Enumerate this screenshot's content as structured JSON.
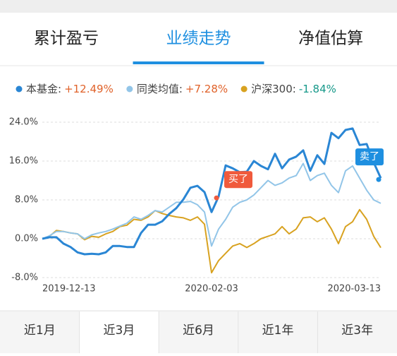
{
  "tabs": [
    "累计盈亏",
    "业绩走势",
    "净值估算"
  ],
  "active_tab": 1,
  "chart_data": {
    "type": "line",
    "categories": [
      "2019-12-13",
      null,
      null,
      null,
      null,
      null,
      null,
      null,
      null,
      null,
      null,
      null,
      null,
      null,
      null,
      null,
      null,
      null,
      null,
      null,
      null,
      null,
      null,
      null,
      "2020-02-03",
      null,
      null,
      null,
      null,
      null,
      null,
      null,
      null,
      null,
      null,
      null,
      null,
      null,
      null,
      null,
      null,
      null,
      null,
      null,
      null,
      null,
      null,
      null,
      "2020-03-13"
    ],
    "series": [
      {
        "name": "本基金:",
        "change": "+12.49%",
        "change_color": "#e0622a",
        "color": "#2a86d4",
        "width": 3,
        "values": [
          0,
          0.3,
          0.3,
          -1.0,
          -1.7,
          -2.8,
          -3.2,
          -3.1,
          -3.2,
          -2.8,
          -1.5,
          -1.5,
          -1.7,
          -1.7,
          1.2,
          2.9,
          2.9,
          3.6,
          5.1,
          6.3,
          8.1,
          10.5,
          10.9,
          9.6,
          5.5,
          8.7,
          15.1,
          14.5,
          13.7,
          13.8,
          16.0,
          15.0,
          14.3,
          17.5,
          14.5,
          16.3,
          16.9,
          18.2,
          14.0,
          17.2,
          15.4,
          21.8,
          20.7,
          22.4,
          22.7,
          19.3,
          19.5,
          15.7,
          12.49
        ]
      },
      {
        "name": "同类均值:",
        "change": "+7.28%",
        "change_color": "#e0622a",
        "color": "#92c5e8",
        "width": 2,
        "values": [
          0,
          0.6,
          1.5,
          1.5,
          1.2,
          1.0,
          0,
          0.8,
          1.2,
          1.5,
          2.0,
          2.6,
          3.2,
          4.5,
          4.0,
          4.8,
          5.8,
          5.5,
          6.5,
          7.5,
          7.5,
          7.7,
          7.0,
          5.5,
          -1.5,
          2.0,
          4.0,
          6.5,
          7.5,
          8.0,
          9.0,
          10.5,
          12.0,
          11.0,
          11.5,
          12.5,
          13.0,
          15.5,
          12.0,
          13.0,
          13.5,
          11.0,
          9.5,
          14.0,
          15.0,
          12.5,
          10.0,
          8.0,
          7.28
        ]
      },
      {
        "name": "沪深300:",
        "change": "-1.84%",
        "change_color": "#17998a",
        "color": "#d8a220",
        "width": 2,
        "values": [
          0,
          0.5,
          1.7,
          1.5,
          1.2,
          1.0,
          -0.2,
          0.5,
          0.3,
          1.0,
          1.5,
          2.5,
          2.8,
          4.0,
          3.8,
          4.5,
          5.8,
          5.2,
          4.8,
          4.5,
          4.3,
          3.8,
          4.5,
          3.0,
          -7.0,
          -4.5,
          -3.0,
          -1.5,
          -1.0,
          -1.8,
          -1.0,
          0.0,
          0.5,
          1.0,
          2.5,
          1.0,
          2.0,
          4.3,
          4.5,
          3.5,
          4.3,
          2.0,
          -1.0,
          2.5,
          3.5,
          6.0,
          4.0,
          0.5,
          -1.84
        ]
      }
    ],
    "ylim": [
      -8,
      24
    ],
    "yticks": [
      {
        "value": -8,
        "label": "-8.0%"
      },
      {
        "value": 0,
        "label": "0.0%"
      },
      {
        "value": 8,
        "label": "8.0%"
      },
      {
        "value": 16,
        "label": "16.0%"
      },
      {
        "value": 24,
        "label": "24.0%"
      }
    ],
    "grid": true,
    "annotations": [
      {
        "text": "买了",
        "color": "#f05a3c"
      },
      {
        "text": "卖了",
        "color": "#1e8fe0"
      }
    ]
  },
  "periods": [
    "近1月",
    "近3月",
    "近6月",
    "近1年",
    "近3年"
  ],
  "active_period": 1
}
